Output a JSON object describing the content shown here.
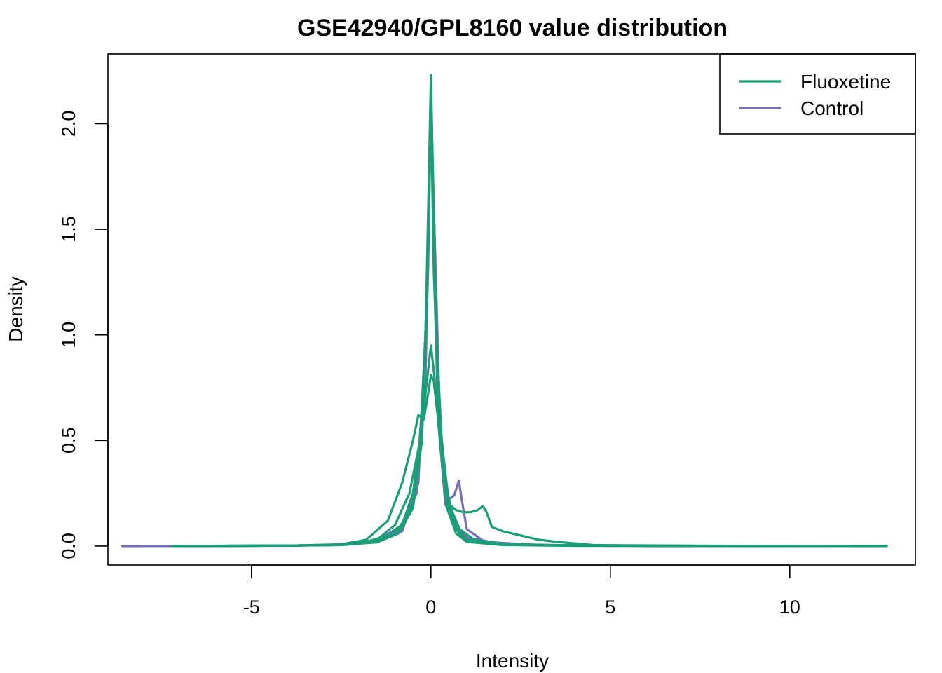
{
  "chart_data": {
    "type": "line",
    "title": "GSE42940/GPL8160 value distribution",
    "xlabel": "Intensity",
    "ylabel": "Density",
    "xlim": [
      -9.0,
      13.5
    ],
    "ylim": [
      -0.09,
      2.33
    ],
    "x_ticks": [
      {
        "value": -5,
        "label": "-5"
      },
      {
        "value": 0,
        "label": "0"
      },
      {
        "value": 5,
        "label": "5"
      },
      {
        "value": 10,
        "label": "10"
      }
    ],
    "y_ticks": [
      {
        "value": 0.0,
        "label": "0.0"
      },
      {
        "value": 0.5,
        "label": "0.5"
      },
      {
        "value": 1.0,
        "label": "1.0"
      },
      {
        "value": 1.5,
        "label": "1.5"
      },
      {
        "value": 2.0,
        "label": "2.0"
      }
    ],
    "grid": false,
    "legend": {
      "position": "top-right",
      "entries": [
        {
          "label": "Fluoxetine",
          "color": "#1b9e77"
        },
        {
          "label": "Control",
          "color": "#7570b3"
        }
      ]
    },
    "series": [
      {
        "group": "Control",
        "color": "#7570b3",
        "points": [
          [
            -8.6,
            0
          ],
          [
            -4,
            0.002
          ],
          [
            -2.5,
            0.006
          ],
          [
            -1.5,
            0.02
          ],
          [
            -0.8,
            0.08
          ],
          [
            -0.4,
            0.25
          ],
          [
            -0.15,
            0.8
          ],
          [
            -0.05,
            1.6
          ],
          [
            0,
            2.2
          ],
          [
            0.05,
            1.7
          ],
          [
            0.15,
            1.0
          ],
          [
            0.3,
            0.45
          ],
          [
            0.5,
            0.22
          ],
          [
            0.65,
            0.24
          ],
          [
            0.78,
            0.31
          ],
          [
            0.86,
            0.22
          ],
          [
            1.0,
            0.08
          ],
          [
            1.5,
            0.02
          ],
          [
            3,
            0.004
          ],
          [
            6,
            0.001
          ],
          [
            11.6,
            0
          ]
        ]
      },
      {
        "group": "Control",
        "color": "#7570b3",
        "points": [
          [
            -8.6,
            0
          ],
          [
            -4,
            0.002
          ],
          [
            -2.5,
            0.005
          ],
          [
            -1.5,
            0.018
          ],
          [
            -0.8,
            0.07
          ],
          [
            -0.35,
            0.3
          ],
          [
            -0.1,
            1.2
          ],
          [
            0,
            2.15
          ],
          [
            0.08,
            1.4
          ],
          [
            0.2,
            0.6
          ],
          [
            0.4,
            0.2
          ],
          [
            0.7,
            0.08
          ],
          [
            1.0,
            0.04
          ],
          [
            1.5,
            0.015
          ],
          [
            3,
            0.004
          ],
          [
            6,
            0.001
          ],
          [
            11,
            0
          ]
        ]
      },
      {
        "group": "Control",
        "color": "#7570b3",
        "points": [
          [
            -7.5,
            0
          ],
          [
            -4,
            0.002
          ],
          [
            -2.5,
            0.006
          ],
          [
            -1.5,
            0.025
          ],
          [
            -0.8,
            0.1
          ],
          [
            -0.4,
            0.3
          ],
          [
            -0.15,
            0.9
          ],
          [
            0,
            2.1
          ],
          [
            0.1,
            1.5
          ],
          [
            0.25,
            0.6
          ],
          [
            0.45,
            0.25
          ],
          [
            0.7,
            0.1
          ],
          [
            1.0,
            0.04
          ],
          [
            2,
            0.01
          ],
          [
            4,
            0.002
          ],
          [
            9,
            0
          ]
        ]
      },
      {
        "group": "Fluoxetine",
        "color": "#1b9e77",
        "points": [
          [
            -7.2,
            0
          ],
          [
            -4,
            0.002
          ],
          [
            -2.5,
            0.007
          ],
          [
            -1.8,
            0.02
          ],
          [
            -1.2,
            0.05
          ],
          [
            -0.8,
            0.1
          ],
          [
            -0.5,
            0.25
          ],
          [
            -0.3,
            0.5
          ],
          [
            -0.15,
            1.0
          ],
          [
            -0.05,
            1.8
          ],
          [
            0,
            2.23
          ],
          [
            0.05,
            1.8
          ],
          [
            0.15,
            1.0
          ],
          [
            0.3,
            0.5
          ],
          [
            0.5,
            0.2
          ],
          [
            0.8,
            0.08
          ],
          [
            1.2,
            0.03
          ],
          [
            2,
            0.01
          ],
          [
            4,
            0.002
          ],
          [
            8,
            0.001
          ],
          [
            12.7,
            0
          ]
        ]
      },
      {
        "group": "Fluoxetine",
        "color": "#1b9e77",
        "points": [
          [
            -7.2,
            0
          ],
          [
            -4,
            0.002
          ],
          [
            -2.5,
            0.008
          ],
          [
            -1.8,
            0.03
          ],
          [
            -1.2,
            0.12
          ],
          [
            -0.8,
            0.3
          ],
          [
            -0.5,
            0.5
          ],
          [
            -0.35,
            0.62
          ],
          [
            -0.2,
            0.6
          ],
          [
            -0.05,
            0.75
          ],
          [
            0,
            0.81
          ],
          [
            0.08,
            0.78
          ],
          [
            0.2,
            0.6
          ],
          [
            0.35,
            0.35
          ],
          [
            0.5,
            0.2
          ],
          [
            0.7,
            0.17
          ],
          [
            0.9,
            0.16
          ],
          [
            1.1,
            0.16
          ],
          [
            1.3,
            0.17
          ],
          [
            1.45,
            0.19
          ],
          [
            1.55,
            0.16
          ],
          [
            1.7,
            0.09
          ],
          [
            2.0,
            0.07
          ],
          [
            2.5,
            0.05
          ],
          [
            3,
            0.03
          ],
          [
            3.5,
            0.02
          ],
          [
            4.5,
            0.005
          ],
          [
            6,
            0.001
          ],
          [
            12.7,
            0
          ]
        ]
      },
      {
        "group": "Fluoxetine",
        "color": "#1b9e77",
        "points": [
          [
            -7.2,
            0
          ],
          [
            -4,
            0.002
          ],
          [
            -2.5,
            0.006
          ],
          [
            -1.5,
            0.03
          ],
          [
            -1.0,
            0.1
          ],
          [
            -0.6,
            0.25
          ],
          [
            -0.3,
            0.5
          ],
          [
            -0.1,
            0.8
          ],
          [
            0,
            0.95
          ],
          [
            0.1,
            0.8
          ],
          [
            0.25,
            0.5
          ],
          [
            0.4,
            0.3
          ],
          [
            0.6,
            0.15
          ],
          [
            0.8,
            0.05
          ],
          [
            1.0,
            0.02
          ],
          [
            2,
            0.005
          ],
          [
            4,
            0.001
          ],
          [
            10,
            0
          ]
        ]
      },
      {
        "group": "Fluoxetine",
        "color": "#1b9e77",
        "points": [
          [
            -7.2,
            0
          ],
          [
            -4,
            0.002
          ],
          [
            -2.5,
            0.005
          ],
          [
            -1.5,
            0.02
          ],
          [
            -0.9,
            0.08
          ],
          [
            -0.5,
            0.2
          ],
          [
            -0.25,
            0.5
          ],
          [
            -0.08,
            1.3
          ],
          [
            0,
            2.1
          ],
          [
            0.08,
            1.3
          ],
          [
            0.25,
            0.5
          ],
          [
            0.45,
            0.2
          ],
          [
            0.7,
            0.08
          ],
          [
            1.0,
            0.03
          ],
          [
            2,
            0.008
          ],
          [
            4,
            0.002
          ],
          [
            10,
            0
          ]
        ]
      },
      {
        "group": "Fluoxetine",
        "color": "#1b9e77",
        "points": [
          [
            -7.2,
            0
          ],
          [
            -4,
            0.002
          ],
          [
            -2.5,
            0.005
          ],
          [
            -1.5,
            0.018
          ],
          [
            -0.9,
            0.06
          ],
          [
            -0.5,
            0.18
          ],
          [
            -0.25,
            0.5
          ],
          [
            -0.08,
            1.4
          ],
          [
            0,
            2.2
          ],
          [
            0.08,
            1.4
          ],
          [
            0.25,
            0.5
          ],
          [
            0.45,
            0.18
          ],
          [
            0.7,
            0.06
          ],
          [
            1.0,
            0.02
          ],
          [
            2,
            0.006
          ],
          [
            10,
            0
          ]
        ]
      }
    ]
  }
}
